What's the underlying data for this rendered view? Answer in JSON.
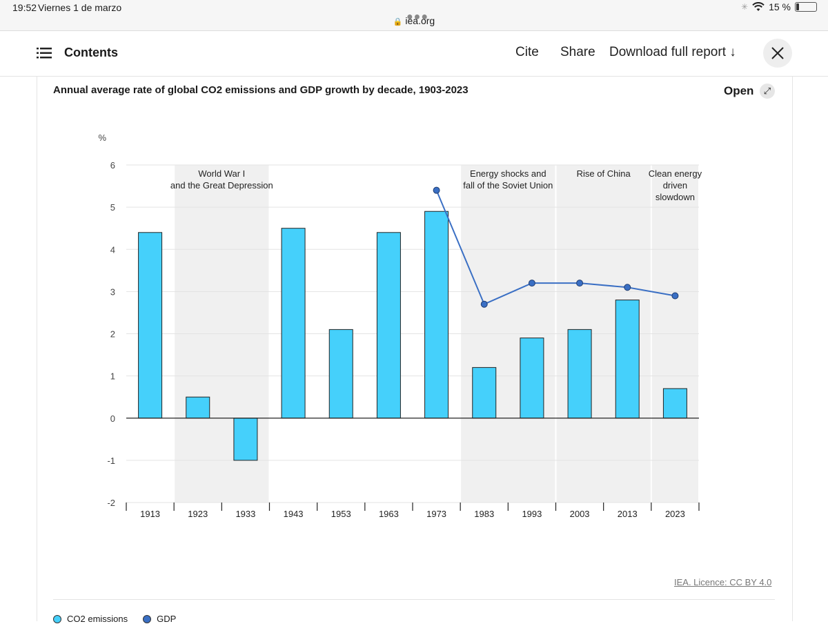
{
  "statusbar": {
    "time": "19:52",
    "date": "Viernes 1 de marzo",
    "battery": "15 %"
  },
  "browser": {
    "url": "iea.org"
  },
  "header": {
    "contents": "Contents",
    "cite": "Cite",
    "share": "Share",
    "download": "Download full report ↓"
  },
  "card": {
    "title": "Annual average rate of global CO2 emissions and GDP growth by decade, 1903-2023",
    "open": "Open",
    "license": "IEA. Licence: CC BY 4.0"
  },
  "colors": {
    "bar": "#45d0fb",
    "line": "#3a6fc4",
    "shade": "#f0f0f0"
  },
  "chart_data": {
    "type": "bar",
    "title": "Annual average rate of global CO2 emissions and GDP growth by decade, 1903-2023",
    "ylabel": "%",
    "ylim": [
      -2,
      6
    ],
    "yticks": [
      -2,
      -1,
      0,
      1,
      2,
      3,
      4,
      5,
      6
    ],
    "categories": [
      "1913",
      "1923",
      "1933",
      "1943",
      "1953",
      "1963",
      "1973",
      "1983",
      "1993",
      "2003",
      "2013",
      "2023"
    ],
    "series": [
      {
        "name": "CO2 emissions",
        "type": "bar",
        "values": [
          4.4,
          0.5,
          -1.0,
          4.5,
          2.1,
          4.4,
          4.9,
          1.2,
          1.9,
          2.1,
          2.8,
          0.7
        ]
      },
      {
        "name": "GDP",
        "type": "line",
        "values": [
          null,
          null,
          null,
          null,
          null,
          null,
          5.4,
          2.7,
          3.2,
          3.2,
          3.1,
          2.9
        ]
      }
    ],
    "periods": [
      {
        "lines": [
          "World War I",
          "and the Great Depression"
        ],
        "from": "1923",
        "to": "1933"
      },
      {
        "lines": [
          "Energy shocks and",
          "fall of the Soviet Union"
        ],
        "from": "1983",
        "to": "1993"
      },
      {
        "lines": [
          "Rise of China"
        ],
        "from": "2003",
        "to": "2013"
      },
      {
        "lines": [
          "Clean energy",
          "driven",
          "slowdown"
        ],
        "from": "2023",
        "to": "2023"
      }
    ],
    "legend": [
      "CO2 emissions",
      "GDP"
    ]
  }
}
